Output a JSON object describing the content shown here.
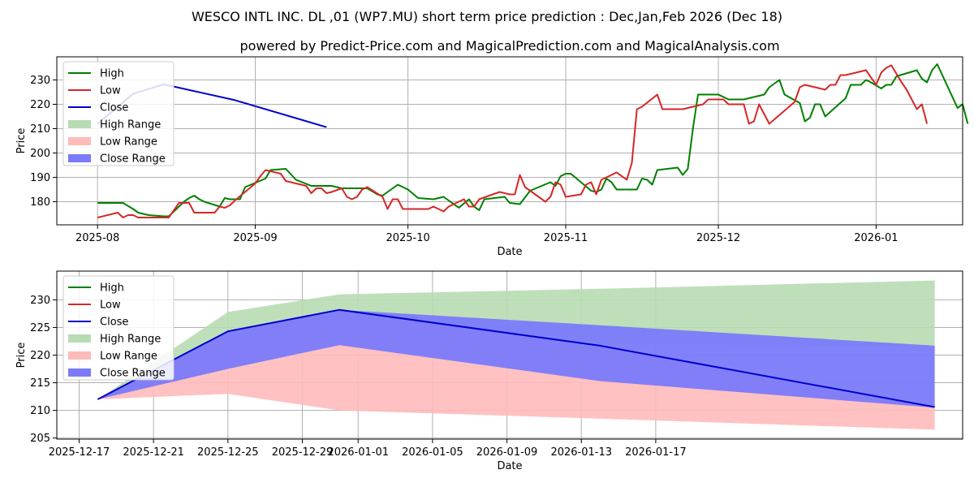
{
  "title": "WESCO INTL INC. DL ,01 (WP7.MU) short term price prediction : Dec,Jan,Feb 2026 (Dec 18)",
  "subtitle": "powered by Predict-Price.com and MagicalPrediction.com and MagicalAnalysis.com",
  "colors": {
    "high": "#008000",
    "low": "#d62728",
    "close": "#0000cc",
    "high_range": "#b7dcb3",
    "low_range": "#ffbaba",
    "close_range": "#7a7afa",
    "grid": "#b0b0b0"
  },
  "legend": [
    "High",
    "Low",
    "Close",
    "High Range",
    "Low Range",
    "Close Range"
  ],
  "chart_data": [
    {
      "type": "line",
      "xlabel": "Date",
      "ylabel": "Price",
      "x_ticks": [
        "2025-08",
        "2025-09",
        "2025-10",
        "2025-11",
        "2025-12",
        "2026-01"
      ],
      "y_ticks": [
        180,
        190,
        200,
        210,
        220,
        230
      ],
      "xlim_days": [
        -8,
        170
      ],
      "ylim": [
        170.5,
        239.5
      ],
      "grid": true,
      "legend_position": "top-left",
      "series": [
        {
          "name": "High",
          "points": [
            [
              0,
              179.5
            ],
            [
              5,
              179.5
            ],
            [
              7,
              177
            ],
            [
              8,
              175.5
            ],
            [
              10,
              174.5
            ],
            [
              13,
              174
            ],
            [
              14,
              174
            ],
            [
              17,
              180
            ],
            [
              18,
              181.5
            ],
            [
              19,
              182.5
            ],
            [
              20,
              181
            ],
            [
              21,
              180
            ],
            [
              24,
              178
            ],
            [
              25,
              181.5
            ],
            [
              26,
              181
            ],
            [
              28,
              181
            ],
            [
              29,
              186
            ],
            [
              33,
              189.5
            ],
            [
              34,
              193
            ],
            [
              37,
              193.5
            ],
            [
              39,
              189
            ],
            [
              42,
              186.5
            ],
            [
              46,
              186.5
            ],
            [
              48,
              185.5
            ],
            [
              53,
              185.5
            ],
            [
              55,
              183
            ],
            [
              56,
              182.5
            ],
            [
              59,
              187
            ],
            [
              61,
              185
            ],
            [
              63,
              181.5
            ],
            [
              66,
              181
            ],
            [
              68,
              182
            ],
            [
              71,
              177.5
            ],
            [
              73,
              181
            ],
            [
              74,
              178
            ],
            [
              75,
              176.5
            ],
            [
              76,
              181
            ],
            [
              80,
              182
            ],
            [
              81,
              179.5
            ],
            [
              83,
              179
            ],
            [
              85,
              184.5
            ],
            [
              89,
              188
            ],
            [
              90,
              186.5
            ],
            [
              91,
              190.5
            ],
            [
              92,
              191.5
            ],
            [
              93,
              191.5
            ],
            [
              97,
              184.5
            ],
            [
              98,
              184
            ],
            [
              99,
              185
            ],
            [
              100,
              189.5
            ],
            [
              101,
              188
            ],
            [
              102,
              185
            ],
            [
              106,
              185
            ],
            [
              107,
              189.5
            ],
            [
              108,
              189
            ],
            [
              109,
              187
            ],
            [
              110,
              193
            ],
            [
              114,
              194
            ],
            [
              115,
              191
            ],
            [
              116,
              193.5
            ],
            [
              117,
              210
            ],
            [
              118,
              224
            ],
            [
              122,
              224
            ],
            [
              123,
              223
            ],
            [
              124,
              222
            ],
            [
              127,
              222
            ],
            [
              130,
              223.5
            ],
            [
              131,
              224
            ],
            [
              132,
              227
            ],
            [
              134,
              230
            ],
            [
              135,
              224
            ],
            [
              138,
              220.5
            ],
            [
              139,
              213
            ],
            [
              140,
              214.5
            ],
            [
              141,
              220
            ],
            [
              142,
              220
            ],
            [
              143,
              215
            ],
            [
              147,
              222.5
            ],
            [
              148,
              228
            ],
            [
              150,
              228
            ],
            [
              151,
              230
            ],
            [
              152,
              229
            ],
            [
              154,
              226.5
            ],
            [
              155,
              228
            ],
            [
              156,
              228
            ],
            [
              157,
              231.5
            ],
            [
              161,
              234
            ],
            [
              162,
              230.5
            ],
            [
              163,
              229
            ],
            [
              164,
              234
            ],
            [
              165,
              236.5
            ],
            [
              169,
              218.5
            ],
            [
              170,
              220
            ],
            [
              171,
              212
            ]
          ]
        },
        {
          "name": "Low",
          "points": [
            [
              0,
              173.5
            ],
            [
              4,
              175.5
            ],
            [
              5,
              173.5
            ],
            [
              6,
              174.5
            ],
            [
              7,
              174.5
            ],
            [
              8,
              173.5
            ],
            [
              13,
              173.5
            ],
            [
              14,
              173.5
            ],
            [
              16,
              179.5
            ],
            [
              18,
              179.5
            ],
            [
              19,
              175.5
            ],
            [
              22,
              175.5
            ],
            [
              23,
              175.5
            ],
            [
              24,
              178
            ],
            [
              25,
              177.5
            ],
            [
              26,
              178.5
            ],
            [
              27,
              180.5
            ],
            [
              31,
              187.5
            ],
            [
              32,
              190.5
            ],
            [
              33,
              193
            ],
            [
              36,
              191.5
            ],
            [
              37,
              188.5
            ],
            [
              41,
              186.5
            ],
            [
              42,
              183.5
            ],
            [
              43,
              185.5
            ],
            [
              44,
              185.5
            ],
            [
              45,
              183.5
            ],
            [
              46,
              184
            ],
            [
              48,
              185.5
            ],
            [
              49,
              182
            ],
            [
              50,
              181
            ],
            [
              51,
              182
            ],
            [
              52,
              185
            ],
            [
              53,
              186
            ],
            [
              56,
              182
            ],
            [
              57,
              177
            ],
            [
              58,
              181
            ],
            [
              59,
              181
            ],
            [
              60,
              177
            ],
            [
              65,
              177
            ],
            [
              66,
              178
            ],
            [
              68,
              176
            ],
            [
              69,
              178
            ],
            [
              70,
              179
            ],
            [
              72,
              181
            ],
            [
              73,
              178
            ],
            [
              74,
              178
            ],
            [
              75,
              181
            ],
            [
              77,
              182.5
            ],
            [
              79,
              184
            ],
            [
              81,
              183
            ],
            [
              82,
              183
            ],
            [
              83,
              191
            ],
            [
              84,
              186
            ],
            [
              88,
              180
            ],
            [
              89,
              182
            ],
            [
              90,
              188
            ],
            [
              91,
              187
            ],
            [
              92,
              182
            ],
            [
              95,
              183
            ],
            [
              96,
              187
            ],
            [
              97,
              188
            ],
            [
              98,
              183
            ],
            [
              99,
              189
            ],
            [
              101,
              191
            ],
            [
              102,
              192
            ],
            [
              104,
              189
            ],
            [
              105,
              196
            ],
            [
              106,
              218
            ],
            [
              107,
              219
            ],
            [
              110,
              224
            ],
            [
              111,
              218
            ],
            [
              115,
              218
            ],
            [
              119,
              220
            ],
            [
              120,
              222
            ],
            [
              123,
              222
            ],
            [
              124,
              220
            ],
            [
              127,
              220
            ],
            [
              128,
              212
            ],
            [
              129,
              213
            ],
            [
              130,
              220
            ],
            [
              132,
              212
            ],
            [
              137,
              221
            ],
            [
              138,
              227
            ],
            [
              139,
              228
            ],
            [
              141,
              227
            ],
            [
              143,
              226
            ],
            [
              144,
              228
            ],
            [
              145,
              228
            ],
            [
              146,
              232
            ],
            [
              147,
              232
            ],
            [
              150,
              233.5
            ],
            [
              151,
              234
            ],
            [
              152,
              231
            ],
            [
              153,
              228
            ],
            [
              154,
              233
            ],
            [
              155,
              235
            ],
            [
              156,
              236
            ],
            [
              158,
              229
            ],
            [
              159,
              226
            ],
            [
              161,
              218
            ],
            [
              162,
              220
            ],
            [
              163,
              212
            ]
          ]
        },
        {
          "name": "Close",
          "points": [
            [
              0,
              212
            ],
            [
              7,
              224.3
            ],
            [
              13,
              228.2
            ],
            [
              27,
              221.7
            ],
            [
              45,
              210.6
            ]
          ]
        }
      ]
    },
    {
      "type": "area",
      "xlabel": "Date",
      "ylabel": "Price",
      "x_ticks": [
        "2025-12-17",
        "2025-12-21",
        "2025-12-25",
        "2025-12-29",
        "2026-01-01",
        "2026-01-05",
        "2026-01-09",
        "2026-01-13",
        "2026-01-17"
      ],
      "y_ticks": [
        205,
        210,
        215,
        220,
        225,
        230
      ],
      "xlim_days": [
        -2.2,
        46.5
      ],
      "ylim": [
        204.8,
        235.2
      ],
      "grid": true,
      "legend_position": "top-left",
      "series": [
        {
          "name": "High Range",
          "upper": [
            [
              0,
              212
            ],
            [
              7,
              227.8
            ],
            [
              13,
              231
            ],
            [
              27,
              232
            ],
            [
              45,
              233.5
            ]
          ],
          "lower": [
            [
              0,
              212
            ],
            [
              7,
              218.5
            ],
            [
              13,
              222
            ],
            [
              27,
              222
            ],
            [
              45,
              221.7
            ]
          ]
        },
        {
          "name": "Low Range",
          "upper": [
            [
              0,
              212
            ],
            [
              7,
              224.3
            ],
            [
              13,
              228.2
            ],
            [
              27,
              221.5
            ],
            [
              45,
              210.5
            ]
          ],
          "lower": [
            [
              0,
              212
            ],
            [
              7,
              213
            ],
            [
              13,
              210
            ],
            [
              27,
              208.5
            ],
            [
              45,
              206.5
            ]
          ]
        },
        {
          "name": "Close Range",
          "upper": [
            [
              0,
              212
            ],
            [
              7,
              224.3
            ],
            [
              13,
              228.2
            ],
            [
              27,
              225.4
            ],
            [
              45,
              221.7
            ]
          ],
          "lower": [
            [
              0,
              212
            ],
            [
              7,
              217.5
            ],
            [
              13,
              221.8
            ],
            [
              27,
              215.3
            ],
            [
              45,
              210.5
            ]
          ]
        },
        {
          "name": "Close",
          "points": [
            [
              0,
              212
            ],
            [
              7,
              224.3
            ],
            [
              13,
              228.2
            ],
            [
              27,
              221.7
            ],
            [
              45,
              210.6
            ]
          ]
        }
      ]
    }
  ]
}
